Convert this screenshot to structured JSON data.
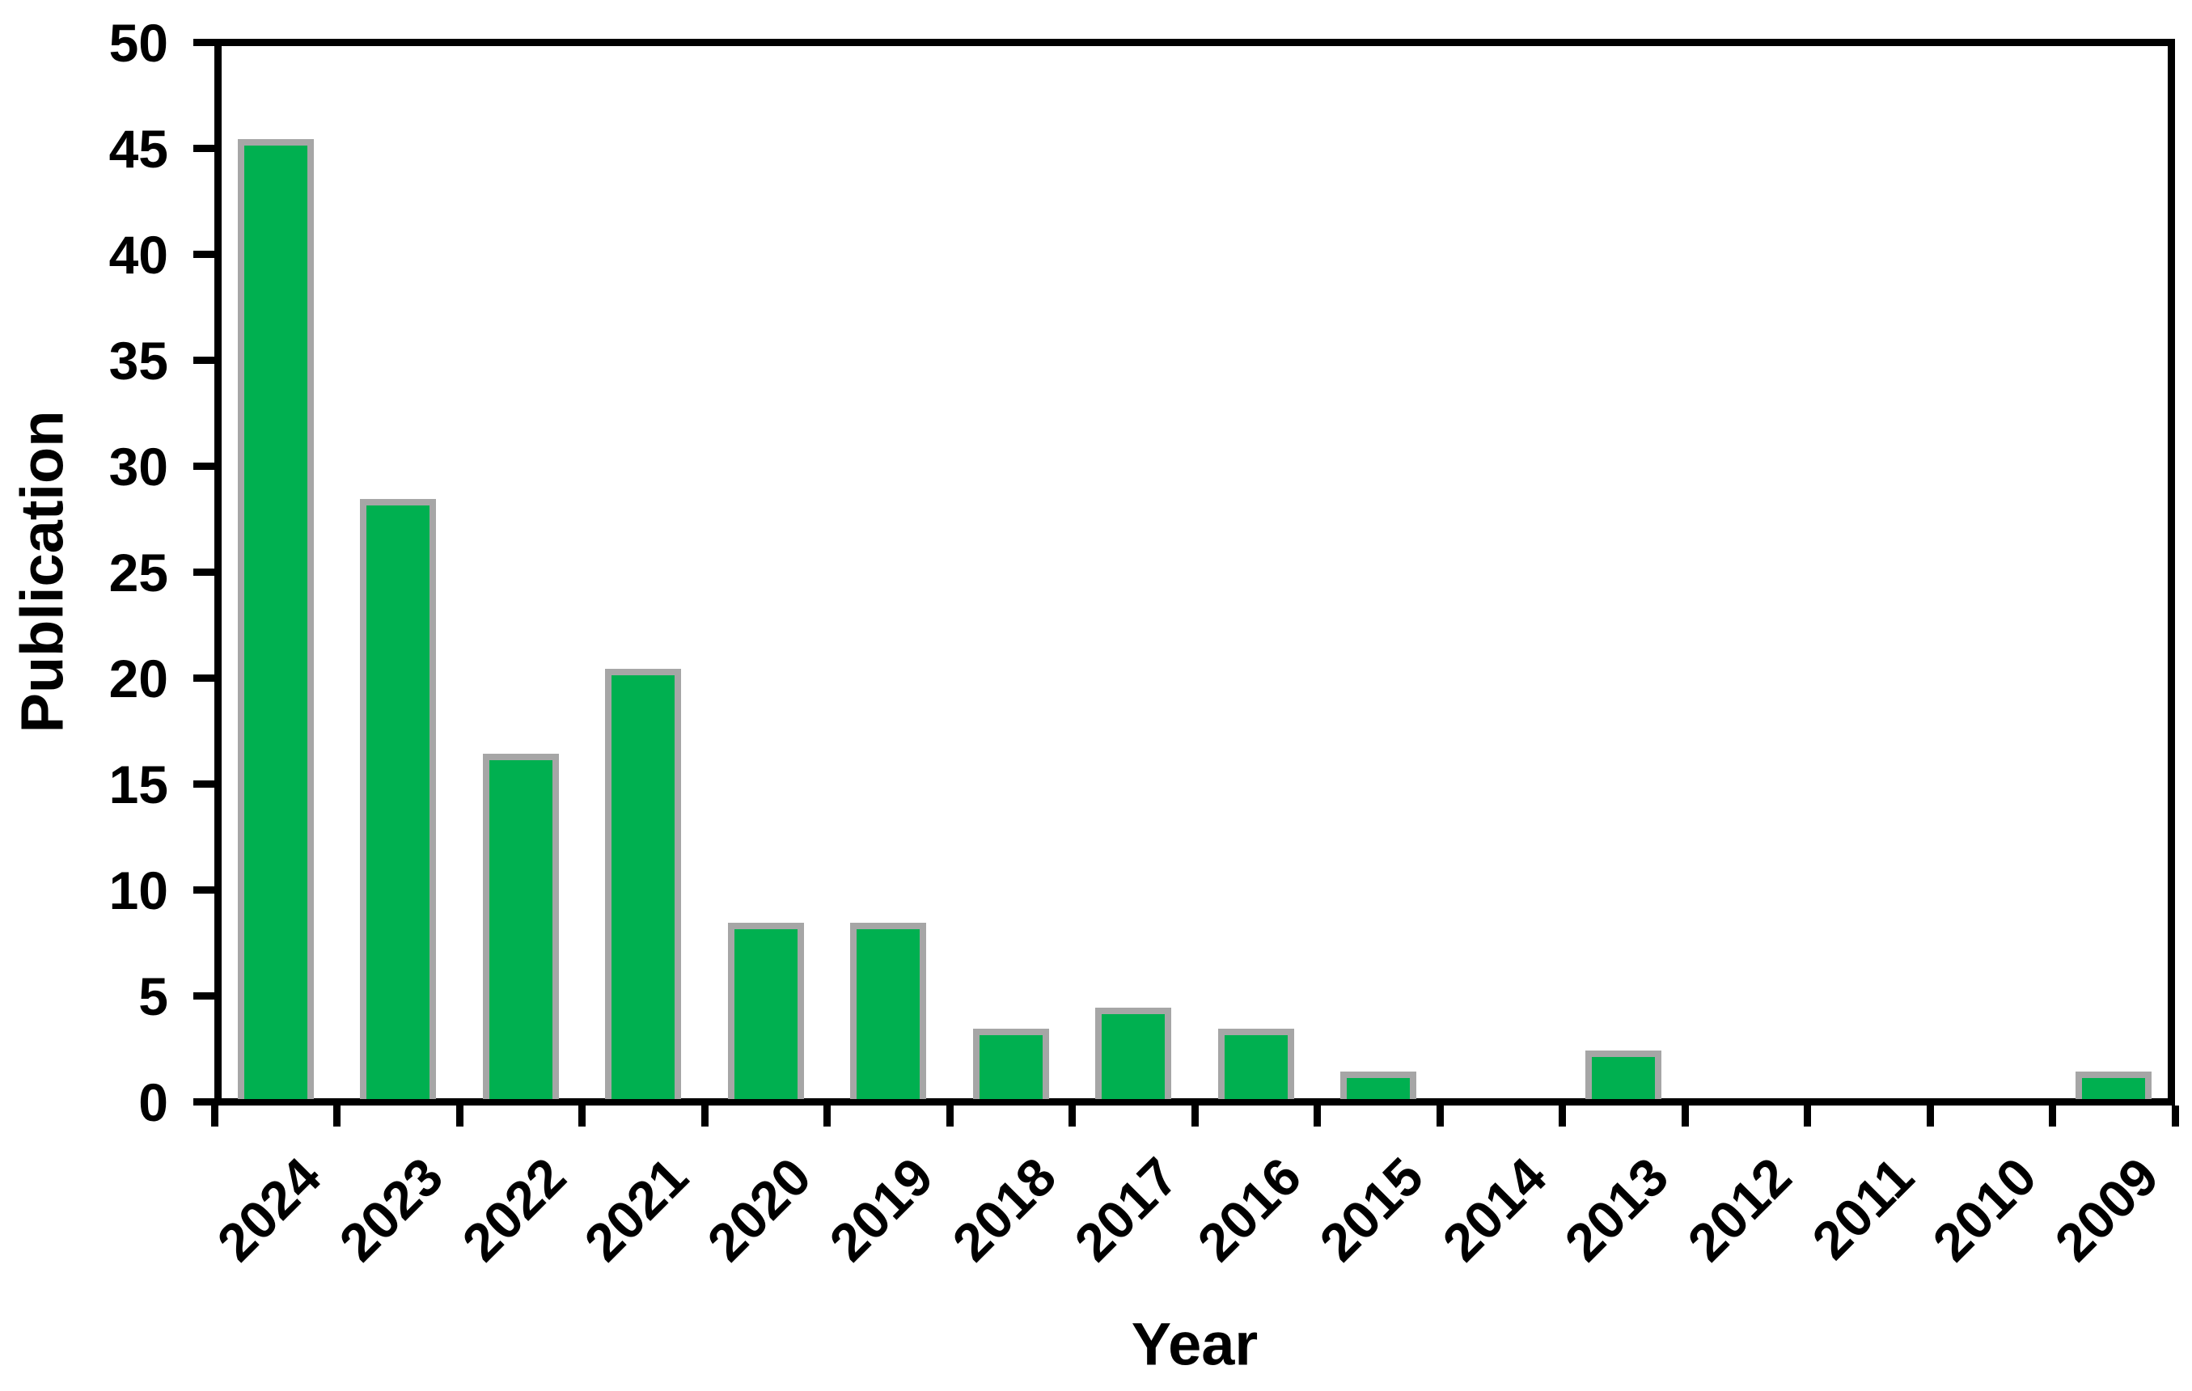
{
  "chart_data": {
    "type": "bar",
    "title": "",
    "xlabel": "Year",
    "ylabel": "Publication",
    "categories": [
      "2024",
      "2023",
      "2022",
      "2021",
      "2020",
      "2019",
      "2018",
      "2017",
      "2016",
      "2015",
      "2014",
      "2013",
      "2012",
      "2011",
      "2010",
      "2009"
    ],
    "values": [
      45,
      28,
      16,
      20,
      8,
      8,
      3,
      4,
      3,
      1,
      0,
      2,
      0,
      0,
      0,
      1
    ],
    "ylim": [
      0,
      50
    ],
    "ytick_step": 5,
    "yticks": [
      0,
      5,
      10,
      15,
      20,
      25,
      30,
      35,
      40,
      45,
      50
    ],
    "grid": false,
    "legend": null,
    "bar_fill_color": "#00B050",
    "bar_border_color": "#A6A6A6",
    "axis_color": "#000000",
    "text_color": "#000000",
    "background_color": "#FFFFFF"
  }
}
